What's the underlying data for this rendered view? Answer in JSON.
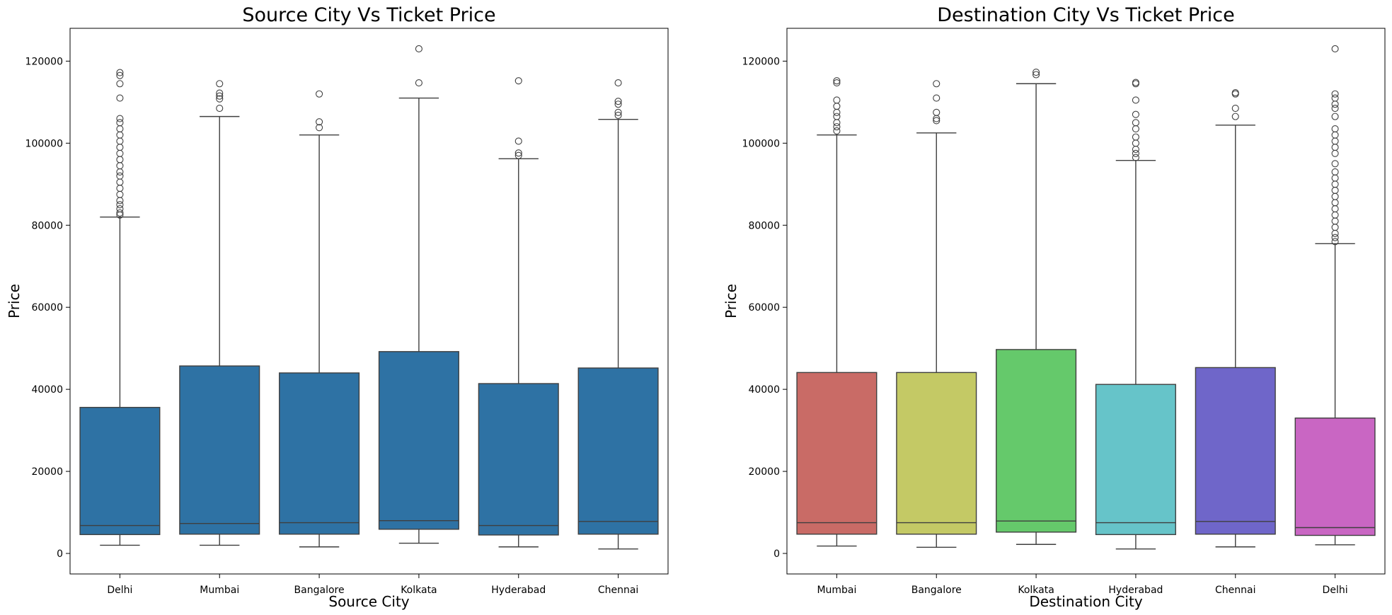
{
  "chart_data": [
    {
      "type": "box",
      "title": "Source City Vs Ticket Price",
      "xlabel": "Source City",
      "ylabel": "Price",
      "ylim": [
        -5000,
        128000
      ],
      "yticks": [
        0,
        20000,
        40000,
        60000,
        80000,
        100000,
        120000
      ],
      "grid": false,
      "categories": [
        "Delhi",
        "Mumbai",
        "Bangalore",
        "Kolkata",
        "Hyderabad",
        "Chennai"
      ],
      "colors": [
        "#2e72a4",
        "#2e72a4",
        "#2e72a4",
        "#2e72a4",
        "#2e72a4",
        "#2e72a4"
      ],
      "boxes": [
        {
          "min": 2000,
          "q1": 4600,
          "median": 6800,
          "q3": 35600,
          "max": 82000,
          "outliers": [
            82500,
            83000,
            84000,
            85000,
            86000,
            87500,
            89000,
            90500,
            92000,
            93000,
            94500,
            96000,
            97500,
            99000,
            100500,
            102000,
            103500,
            105000,
            106000,
            111000,
            114500,
            116500,
            117200
          ]
        },
        {
          "min": 2000,
          "q1": 4700,
          "median": 7300,
          "q3": 45700,
          "max": 106500,
          "outliers": [
            108500,
            110800,
            111500,
            112200,
            114500
          ]
        },
        {
          "min": 1600,
          "q1": 4700,
          "median": 7500,
          "q3": 44000,
          "max": 102000,
          "outliers": [
            103800,
            105200,
            112000
          ]
        },
        {
          "min": 2500,
          "q1": 5900,
          "median": 8000,
          "q3": 49200,
          "max": 111000,
          "outliers": [
            114700,
            123000
          ]
        },
        {
          "min": 1600,
          "q1": 4500,
          "median": 6800,
          "q3": 41400,
          "max": 96200,
          "outliers": [
            97000,
            97600,
            100500,
            115200
          ]
        },
        {
          "min": 1100,
          "q1": 4700,
          "median": 7800,
          "q3": 45200,
          "max": 105800,
          "outliers": [
            106800,
            107500,
            109500,
            110200,
            114700
          ]
        }
      ]
    },
    {
      "type": "box",
      "title": "Destination City Vs Ticket Price",
      "xlabel": "Destination City",
      "ylabel": "Price",
      "ylim": [
        -5000,
        128000
      ],
      "yticks": [
        0,
        20000,
        40000,
        60000,
        80000,
        100000,
        120000
      ],
      "grid": false,
      "categories": [
        "Mumbai",
        "Bangalore",
        "Kolkata",
        "Hyderabad",
        "Chennai",
        "Delhi"
      ],
      "colors": [
        "#c96b66",
        "#c4c965",
        "#65c96b",
        "#66c4c9",
        "#6f66c9",
        "#c966c3"
      ],
      "boxes": [
        {
          "min": 1800,
          "q1": 4700,
          "median": 7500,
          "q3": 44100,
          "max": 102000,
          "outliers": [
            103000,
            104000,
            105000,
            106500,
            107500,
            109000,
            110500,
            114700,
            115200
          ]
        },
        {
          "min": 1500,
          "q1": 4700,
          "median": 7500,
          "q3": 44100,
          "max": 102500,
          "outliers": [
            105500,
            106000,
            107500,
            111000,
            114500
          ]
        },
        {
          "min": 2200,
          "q1": 5200,
          "median": 7900,
          "q3": 49700,
          "max": 114500,
          "outliers": [
            116700,
            117300
          ]
        },
        {
          "min": 1100,
          "q1": 4600,
          "median": 7500,
          "q3": 41200,
          "max": 95800,
          "outliers": [
            96500,
            97500,
            98500,
            100000,
            101500,
            103500,
            105000,
            107000,
            110500,
            114500,
            114800
          ]
        },
        {
          "min": 1600,
          "q1": 4700,
          "median": 7800,
          "q3": 45300,
          "max": 104400,
          "outliers": [
            106500,
            108500,
            112000,
            112300
          ]
        },
        {
          "min": 2100,
          "q1": 4400,
          "median": 6300,
          "q3": 33000,
          "max": 75500,
          "outliers": [
            76000,
            77000,
            78000,
            79500,
            81000,
            82500,
            84000,
            85500,
            87000,
            88500,
            90000,
            91500,
            93000,
            95000,
            97500,
            99000,
            100500,
            102000,
            103500,
            106500,
            108500,
            109500,
            111000,
            112000,
            123000
          ]
        }
      ]
    }
  ]
}
